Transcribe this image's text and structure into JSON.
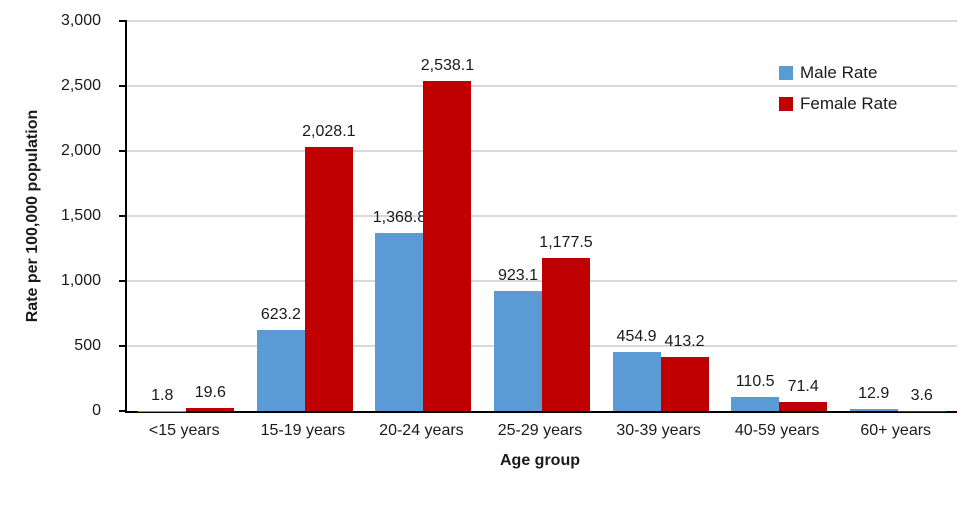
{
  "chart_data": {
    "type": "bar",
    "title": "",
    "xlabel": "Age group",
    "ylabel": "Rate per 100,000 population",
    "categories": [
      "<15 years",
      "15-19 years",
      "20-24 years",
      "25-29 years",
      "30-39 years",
      "40-59 years",
      "60+ years"
    ],
    "series": [
      {
        "name": "Male Rate",
        "color": "#5B9BD5",
        "values": [
          1.8,
          623.2,
          1368.8,
          923.1,
          454.9,
          110.5,
          12.9
        ],
        "labels": [
          "1.8",
          "623.2",
          "1,368.8",
          "923.1",
          "454.9",
          "110.5",
          "12.9"
        ]
      },
      {
        "name": "Female Rate",
        "color": "#C00000",
        "values": [
          19.6,
          2028.1,
          2538.1,
          1177.5,
          413.2,
          71.4,
          3.6
        ],
        "labels": [
          "19.6",
          "2,028.1",
          "2,538.1",
          "1,177.5",
          "413.2",
          "71.4",
          "3.6"
        ]
      }
    ],
    "y_axis": {
      "min": 0,
      "max": 3000,
      "step": 500,
      "tick_labels": [
        "0",
        "500",
        "1,000",
        "1,500",
        "2,000",
        "2,500",
        "3,000"
      ]
    },
    "grid": true,
    "legend_position": "top-right",
    "colors": {
      "gridline": "#D9D9D9",
      "axis": "#000000",
      "text": "#1A1A1A"
    }
  }
}
